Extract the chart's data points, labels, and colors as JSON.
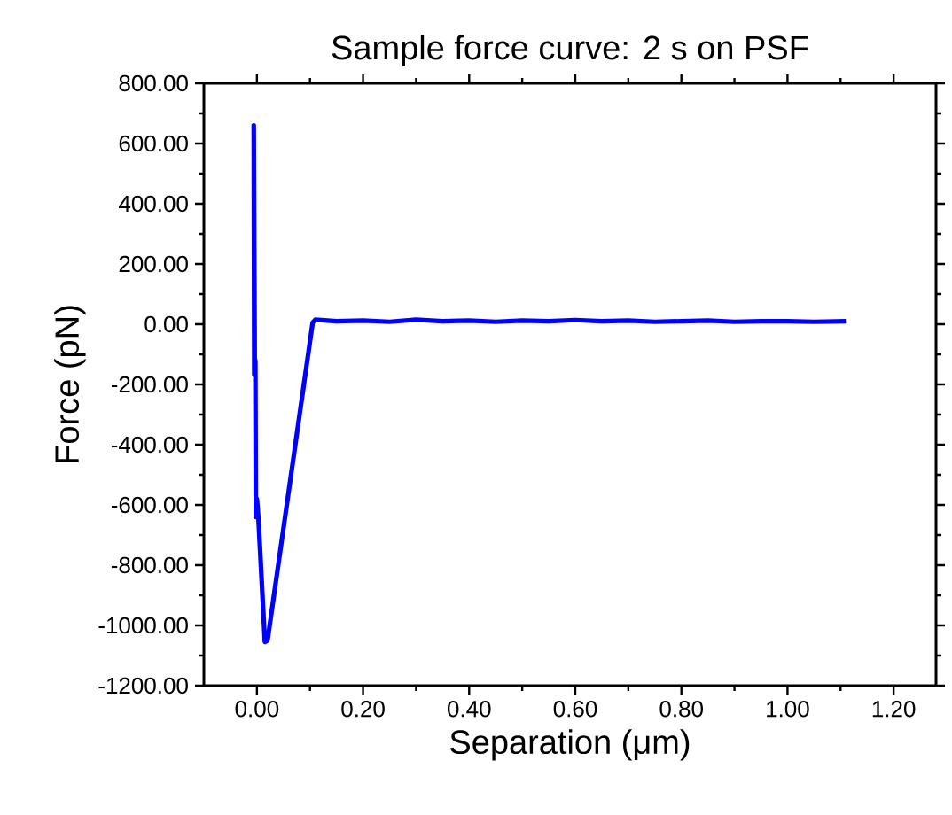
{
  "chart_data": {
    "type": "line",
    "title": "Sample force curve: 2 s on PSF",
    "xlabel": "Separation (μm)",
    "ylabel": "Force (pN)",
    "xlim": [
      -0.1,
      1.28
    ],
    "ylim": [
      -1200,
      800
    ],
    "xticks": [
      {
        "value": 0,
        "label": "0.00"
      },
      {
        "value": 0.2,
        "label": "0.20"
      },
      {
        "value": 0.4,
        "label": "0.40"
      },
      {
        "value": 0.6,
        "label": "0.60"
      },
      {
        "value": 0.8,
        "label": "0.80"
      },
      {
        "value": 1,
        "label": "1.00"
      },
      {
        "value": 1.2,
        "label": "1.20"
      }
    ],
    "yticks": [
      {
        "value": -1200,
        "label": "-1200.00"
      },
      {
        "value": -1000,
        "label": "-1000.00"
      },
      {
        "value": -800,
        "label": "-800.00"
      },
      {
        "value": -600,
        "label": "-600.00"
      },
      {
        "value": -400,
        "label": "-400.00"
      },
      {
        "value": -200,
        "label": "-200.00"
      },
      {
        "value": 0,
        "label": "0.00"
      },
      {
        "value": 200,
        "label": "200.00"
      },
      {
        "value": 400,
        "label": "400.00"
      },
      {
        "value": 600,
        "label": "600.00"
      },
      {
        "value": 800,
        "label": "800.00"
      }
    ],
    "grid": false,
    "marker": "none",
    "line_style": "solid",
    "series": [
      {
        "color": "#0000ff",
        "x": [
          -0.005,
          -0.006,
          -0.004,
          -0.003,
          -0.002,
          0.0,
          0.003,
          0.015,
          0.02,
          0.105,
          0.11,
          0.15,
          0.2,
          0.25,
          0.3,
          0.35,
          0.4,
          0.45,
          0.5,
          0.55,
          0.6,
          0.65,
          0.7,
          0.75,
          0.8,
          0.85,
          0.9,
          0.95,
          1.0,
          1.05,
          1.11
        ],
        "values": [
          -170,
          660,
          -170,
          -120,
          -640,
          -580,
          -650,
          -1055,
          -1050,
          5,
          15,
          10,
          12,
          8,
          15,
          10,
          12,
          8,
          12,
          10,
          14,
          10,
          12,
          8,
          10,
          12,
          8,
          10,
          10,
          8,
          10
        ]
      }
    ]
  }
}
